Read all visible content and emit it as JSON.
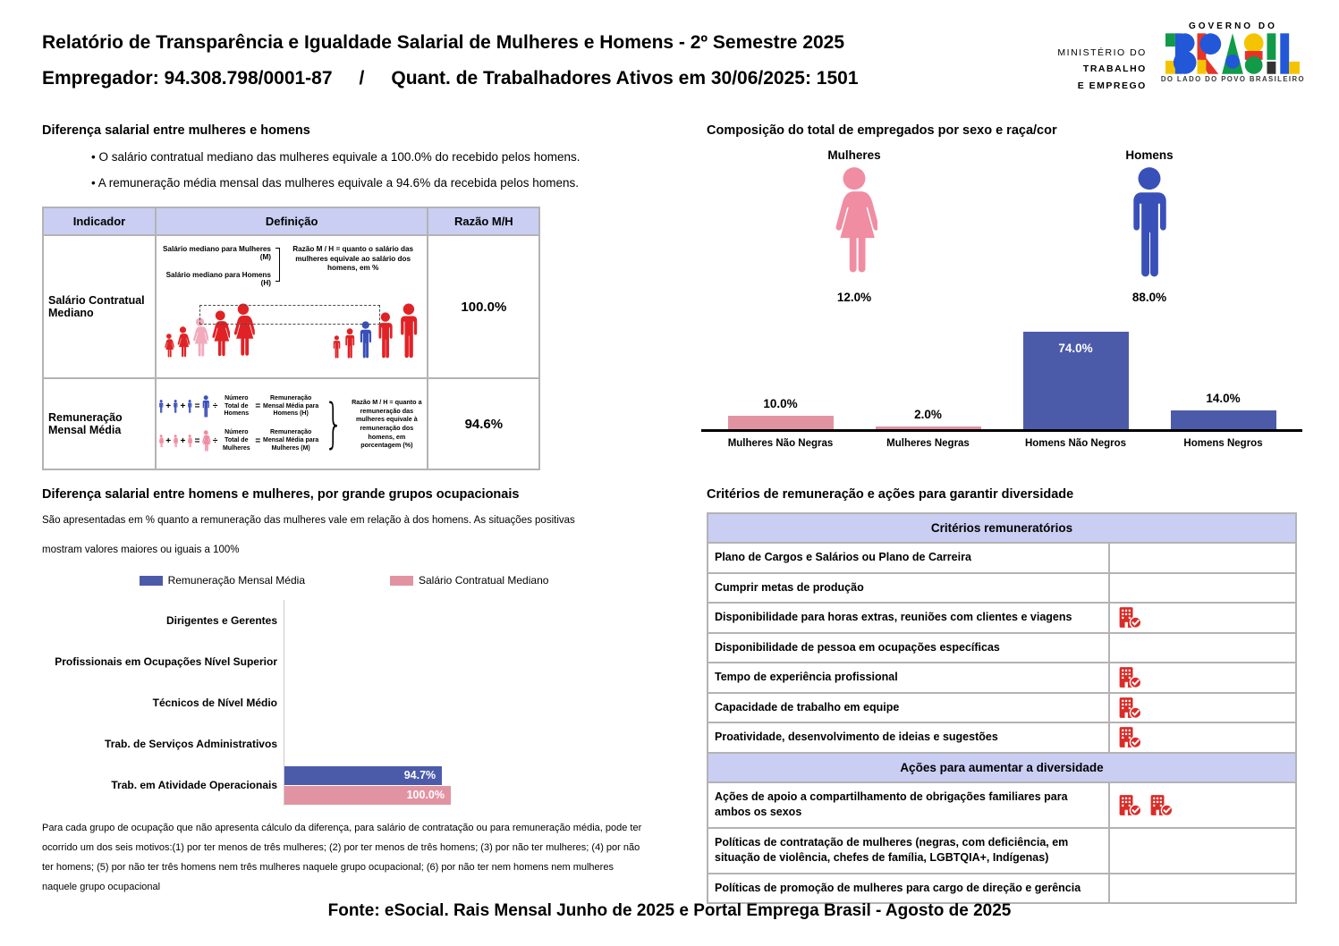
{
  "header": {
    "title_line1": "Relatório de Transparência e Igualdade Salarial de Mulheres e Homens - 2º Semestre 2025",
    "employer": "Empregador: 94.308.798/0001-87",
    "separator": "/",
    "workers": "Quant. de Trabalhadores Ativos em 30/06/2025: 1501",
    "ministry": {
      "line1": "MINISTÉRIO DO",
      "line2": "TRABALHO",
      "line3": "E EMPREGO"
    },
    "gov_logo": {
      "top": "GOVERNO DO",
      "brand": "BRASIL",
      "tagline": "DO LADO DO POVO BRASILEIRO"
    }
  },
  "pay_gap": {
    "title": "Diferença salarial entre mulheres e homens",
    "bullets": [
      "O salário contratual mediano das mulheres equivale a 100.0% do recebido pelos homens.",
      "A remuneração média mensal das mulheres equivale a 94.6% da recebida pelos homens."
    ],
    "table": {
      "headers": [
        "Indicador",
        "Definição",
        "Razão M/H"
      ],
      "row1": {
        "indicator": "Salário Contratual Mediano",
        "def_line1": "Salário mediano para Mulheres (M)",
        "def_line2": "Salário mediano para Homens (H)",
        "def_note": "Razão M / H = quanto o salário das mulheres equivale ao salário dos homens, em %",
        "ratio": "100.0%"
      },
      "row2": {
        "indicator": "Remuneração Mensal Média",
        "men_divisor": "Número Total de Homens",
        "men_result": "Remuneração Mensal Média para Homens (H)",
        "women_divisor": "Número Total de Mulheres",
        "women_result": "Remuneração Mensal Média para Mulheres (M)",
        "def_note": "Razão M / H = quanto a remuneração das mulheres equivale à remuneração dos homens, em porcentagem (%)",
        "ratio": "94.6%"
      }
    },
    "operators": {
      "plus": "+",
      "equals": "=",
      "divide": "÷",
      "brace": "}"
    }
  },
  "composition": {
    "title": "Composição do total de empregados por sexo e raça/cor",
    "women_label": "Mulheres",
    "women_pct": "12.0%",
    "men_label": "Homens",
    "men_pct": "88.0%"
  },
  "chart_data": [
    {
      "type": "bar",
      "title": "Composição do total de empregados por sexo e raça/cor",
      "categories": [
        "Mulheres Não Negras",
        "Mulheres Negras",
        "Homens Não Negros",
        "Homens Negros"
      ],
      "values": [
        10.0,
        2.0,
        74.0,
        14.0
      ],
      "value_labels": [
        "10.0%",
        "2.0%",
        "74.0%",
        "14.0%"
      ],
      "bar_colors": [
        "#E293A2",
        "#E293A2",
        "#4C5BA9",
        "#4C5BA9"
      ],
      "ylim": [
        0,
        100
      ],
      "grid": false,
      "summary": {
        "Mulheres": 12.0,
        "Homens": 88.0
      }
    },
    {
      "type": "bar",
      "orientation": "horizontal",
      "title": "Diferença salarial entre homens e mulheres, por grande grupos ocupacionais",
      "categories": [
        "Dirigentes e Gerentes",
        "Profissionais em Ocupações Nível Superior",
        "Técnicos de Nível Médio",
        "Trab. de Serviços Administrativos",
        "Trab. em Atividade Operacionais"
      ],
      "series": [
        {
          "name": "Remuneração Mensal Média",
          "color": "#4C5BA9",
          "values": [
            null,
            null,
            null,
            null,
            94.7
          ]
        },
        {
          "name": "Salário Contratual Mediano",
          "color": "#E293A2",
          "values": [
            null,
            null,
            null,
            null,
            100.0
          ]
        }
      ],
      "xlim": [
        0,
        107
      ],
      "legend_position": "top",
      "grid": false
    }
  ],
  "occupational": {
    "title": "Diferença salarial entre homens e mulheres, por grande grupos ocupacionais",
    "desc_line1": "São apresentadas em % quanto a remuneração das mulheres vale em relação à dos homens. As situações positivas",
    "desc_line2": "mostram valores maiores ou iguais a 100%",
    "footnote": "Para cada grupo de ocupação que não apresenta cálculo da diferença, para salário de contratação ou para remuneração média, pode ter ocorrido um dos seis motivos:(1) por ter menos de três mulheres; (2) por ter menos de três homens; (3) por não ter mulheres; (4) por não ter homens; (5) por não ter três homens nem três mulheres naquele grupo ocupacional; (6) por não ter nem homens nem mulheres naquele grupo ocupacional"
  },
  "criteria": {
    "title": "Critérios de remuneração e ações para garantir diversidade",
    "rows": [
      {
        "type": "header",
        "label": "Critérios remuneratórios"
      },
      {
        "type": "item",
        "label": "Plano de Cargos e Salários ou Plano de Carreira",
        "icons": 0
      },
      {
        "type": "item",
        "label": "Cumprir metas de produção",
        "icons": 0
      },
      {
        "type": "item",
        "label": "Disponibilidade para horas extras, reuniões com clientes e viagens",
        "icons": 1
      },
      {
        "type": "item",
        "label": "Disponibilidade de pessoa em ocupações específicas",
        "icons": 0
      },
      {
        "type": "item",
        "label": "Tempo de experiência profissional",
        "icons": 1
      },
      {
        "type": "item",
        "label": "Capacidade de trabalho em equipe",
        "icons": 1
      },
      {
        "type": "item",
        "label": "Proatividade, desenvolvimento de ideias e sugestões",
        "icons": 1
      },
      {
        "type": "header",
        "label": "Ações para aumentar a diversidade"
      },
      {
        "type": "item",
        "label": "Ações de apoio a compartilhamento de obrigações familiares para ambos os sexos",
        "icons": 2
      },
      {
        "type": "item",
        "label": "Políticas de contratação de mulheres (negras, com deficiência, em situação de violência, chefes de família, LGBTQIA+, Indígenas)",
        "icons": 0
      },
      {
        "type": "item",
        "label": "Políticas de promoção de mulheres para cargo de direção e gerência",
        "icons": 0
      }
    ]
  },
  "footer": {
    "text": "Fonte: eSocial. Rais Mensal Junho de 2025 e Portal Emprega Brasil - Agosto de 2025"
  },
  "colors": {
    "bar_blue": "#4C5BA9",
    "bar_pink": "#E293A2",
    "figure_pink": "#F08DA2",
    "figure_pink_light": "#F2ABBE",
    "figure_blue": "#3A50B9",
    "figure_red": "#E02226",
    "icon_red": "#DA2C27",
    "table_header_lavender": "#C9CEF2"
  }
}
